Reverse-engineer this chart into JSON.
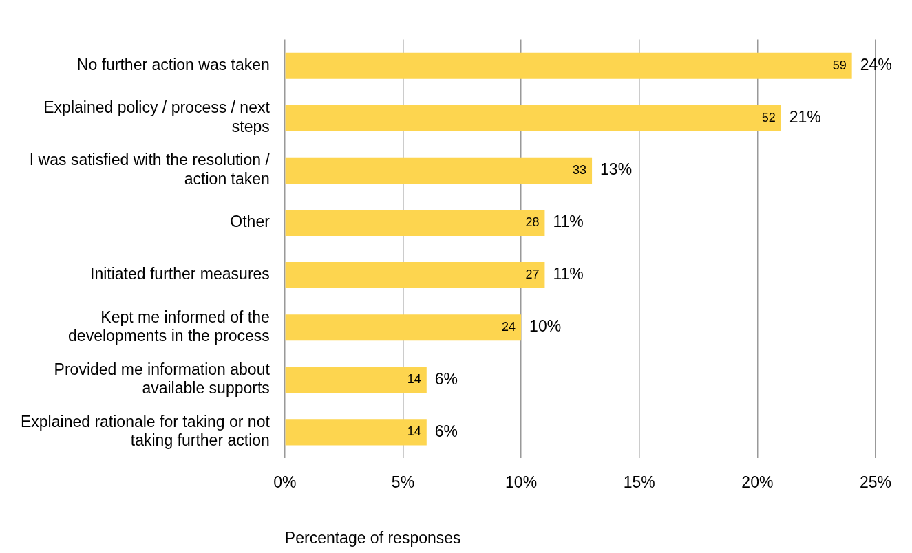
{
  "chart_data": {
    "type": "bar",
    "orientation": "horizontal",
    "xlabel": "Percentage of responses",
    "categories": [
      "No further action was taken",
      "Explained policy / process / next steps",
      "I was satisfied with the resolution / action taken",
      "Other",
      "Initiated further measures",
      "Kept me informed of the developments in the process",
      "Provided me information about available supports",
      "Explained rationale for taking or not taking further action"
    ],
    "values": [
      24,
      21,
      13,
      11,
      11,
      10,
      6,
      6
    ],
    "value_labels": [
      "24%",
      "21%",
      "13%",
      "11%",
      "11%",
      "10%",
      "6%",
      "6%"
    ],
    "color": "#fdd54f",
    "xlim": [
      0,
      25
    ],
    "xticks": [
      {
        "value": 0,
        "label": "0%"
      },
      {
        "value": 5,
        "label": "5%"
      },
      {
        "value": 10,
        "label": "10%"
      },
      {
        "value": 15,
        "label": "15%"
      },
      {
        "value": 20,
        "label": "20%"
      },
      {
        "value": 25,
        "label": "25%"
      }
    ],
    "annotations": [
      {
        "text": "59",
        "x": 24,
        "y": "No further action was taken"
      },
      {
        "text": "52",
        "x": 21,
        "y": "Explained policy / process / next steps"
      },
      {
        "text": "33",
        "x": 13,
        "y": "I was satisfied with the resolution / action taken"
      },
      {
        "text": "28",
        "x": 11,
        "y": "Other"
      },
      {
        "text": "27",
        "x": 11,
        "y": "Initiated further measures"
      },
      {
        "text": "24",
        "x": 10,
        "y": "Kept me informed of the developments in the process"
      },
      {
        "text": "14",
        "x": 6,
        "y": "Provided me information about available supports"
      },
      {
        "text": "14",
        "x": 6,
        "y": "Explained rationale for taking or not taking further action"
      }
    ],
    "grid": "x"
  }
}
